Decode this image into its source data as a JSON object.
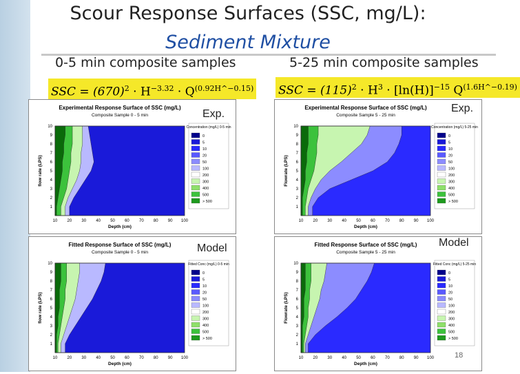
{
  "slide": {
    "title_line1": "Scour Response Surfaces (SSC, mg/L):",
    "title_line2": "Sediment Mixture",
    "left_subtitle": "0-5 min composite samples",
    "right_subtitle": "5-25 min composite samples",
    "page_number": "18"
  },
  "equations": {
    "left": {
      "lhs": "SSC = (670)",
      "p1": "2",
      "h": " · H",
      "p2": "−3.32",
      "q": " · Q",
      "p3": "(0.92H^−0.15)"
    },
    "right": {
      "lhs": "SSC = (115)",
      "p1": "2",
      "h": " · H",
      "p2": "3",
      "ln": " · [ln(H)]",
      "p3": "−15",
      "q": " Q",
      "p4": "(1.6H^−0.19)"
    }
  },
  "colors": {
    "scale": [
      "#00008b",
      "#1a1ad9",
      "#2a2aff",
      "#5a5aff",
      "#8c8cff",
      "#b9b9ff",
      "#ffffff",
      "#c7f5b0",
      "#8ee06a",
      "#3cc23c",
      "#1e9a1e",
      "#0a6a0a"
    ]
  },
  "chart_data": [
    {
      "type": "heatmap",
      "tag": "Exp.",
      "title": "Experimental Response Surface of SSC (mg/L)",
      "subtitle": "Composite Sample 0 - 5 min",
      "xlabel": "Depth (cm)",
      "ylabel": "flow rate (LPS)",
      "xticks": [
        "10",
        "20",
        "30",
        "40",
        "50",
        "60",
        "70",
        "80",
        "90",
        "100"
      ],
      "yticks": [
        "1",
        "2",
        "3",
        "4",
        "5",
        "6",
        "7",
        "8",
        "9",
        "10"
      ],
      "xlim": [
        10,
        100
      ],
      "ylim": [
        0,
        10
      ],
      "legend_title": "Concentration (mg/L) 0-5 min",
      "legend": [
        "0",
        "5",
        "10",
        "20",
        "50",
        "100",
        "200",
        "300",
        "400",
        "500",
        "> 500"
      ],
      "bands_x": [
        [
          11,
          12,
          13,
          14,
          15,
          15,
          16,
          16,
          17,
          17
        ],
        [
          14,
          16,
          18,
          19,
          20,
          21,
          21,
          22,
          22,
          22
        ],
        [
          17,
          19,
          22,
          25,
          27,
          28,
          28,
          29,
          29,
          29
        ],
        [
          20,
          23,
          27,
          31,
          35,
          37,
          36,
          35,
          34,
          33
        ]
      ],
      "band_colors": [
        "#0a6a0a",
        "#3cc23c",
        "#c7f5b0",
        "#b9b9ff",
        "#1a1ad9"
      ]
    },
    {
      "type": "heatmap",
      "tag": "Exp.",
      "title": "Experimental Response Surface of SSC (mg/L)",
      "subtitle": "Composite Sample 5 - 25 min",
      "xlabel": "Depth (cm)",
      "ylabel": "Flowrate (LPS)",
      "xticks": [
        "10",
        "20",
        "30",
        "40",
        "50",
        "60",
        "70",
        "80",
        "90",
        "100"
      ],
      "yticks": [
        "1",
        "2",
        "3",
        "4",
        "5",
        "6",
        "7",
        "8",
        "9",
        "10"
      ],
      "xlim": [
        10,
        100
      ],
      "ylim": [
        0,
        10
      ],
      "legend_title": "Concentration (mg/L) 5-25 min",
      "legend": [
        "0",
        "5",
        "10",
        "20",
        "50",
        "100",
        "200",
        "300",
        "400",
        "500",
        "> 500"
      ],
      "bands_x": [
        [
          11,
          11,
          12,
          13,
          13,
          14,
          14,
          15,
          15,
          15
        ],
        [
          13,
          14,
          15,
          17,
          19,
          20,
          21,
          21,
          22,
          22
        ],
        [
          15,
          17,
          20,
          24,
          30,
          38,
          45,
          52,
          56,
          58
        ],
        [
          18,
          22,
          30,
          45,
          60,
          70,
          75,
          78,
          80,
          80
        ]
      ],
      "band_colors": [
        "#0a6a0a",
        "#3cc23c",
        "#c7f5b0",
        "#8c8cff",
        "#2a2aff"
      ]
    },
    {
      "type": "heatmap",
      "tag": "Model",
      "title": "Fitted Response Surface of SSC (mg/L)",
      "subtitle": "Composite Sample 0 - 5 min",
      "xlabel": "Depth (cm)",
      "ylabel": "flow rate (LPS)",
      "xticks": [
        "10",
        "20",
        "30",
        "40",
        "50",
        "60",
        "70",
        "80",
        "90",
        "100"
      ],
      "yticks": [
        "1",
        "2",
        "3",
        "4",
        "5",
        "6",
        "7",
        "8",
        "9",
        "10"
      ],
      "xlim": [
        10,
        100
      ],
      "ylim": [
        0,
        10
      ],
      "legend_title": "Fitted Conc (mg/L) 0-5 min",
      "legend": [
        "0",
        "5",
        "10",
        "20",
        "50",
        "100",
        "200",
        "300",
        "400",
        "500",
        "> 500"
      ],
      "bands_x": [
        [
          11,
          11,
          12,
          12,
          13,
          13,
          13,
          14,
          14,
          14
        ],
        [
          12,
          13,
          14,
          15,
          16,
          17,
          17,
          18,
          18,
          18
        ],
        [
          14,
          16,
          18,
          20,
          22,
          24,
          25,
          26,
          27,
          27
        ],
        [
          17,
          20,
          24,
          28,
          32,
          36,
          39,
          42,
          44,
          45
        ]
      ],
      "band_colors": [
        "#0a6a0a",
        "#3cc23c",
        "#c7f5b0",
        "#b9b9ff",
        "#1a1ad9"
      ]
    },
    {
      "type": "heatmap",
      "tag": "Model",
      "title": "Fitted Response Surface of SSC (mg/L)",
      "subtitle": "Composite Sample 5 - 25 min",
      "xlabel": "Depth (cm)",
      "ylabel": "Flowrate (LPS)",
      "xticks": [
        "10",
        "20",
        "30",
        "40",
        "50",
        "60",
        "70",
        "80",
        "90",
        "100"
      ],
      "yticks": [
        "1",
        "2",
        "3",
        "4",
        "5",
        "6",
        "7",
        "8",
        "9",
        "10"
      ],
      "xlim": [
        10,
        100
      ],
      "ylim": [
        0,
        10
      ],
      "legend_title": "Fitted Conc (mg/L) 5-25 min",
      "legend": [
        "0",
        "5",
        "10",
        "20",
        "50",
        "100",
        "200",
        "300",
        "400",
        "500",
        "> 500"
      ],
      "bands_x": [
        [
          11,
          11,
          11,
          12,
          12,
          12,
          13,
          13,
          13,
          13
        ],
        [
          12,
          13,
          14,
          15,
          15,
          16,
          16,
          17,
          17,
          17
        ],
        [
          13,
          15,
          17,
          19,
          21,
          23,
          24,
          26,
          27,
          28
        ],
        [
          15,
          20,
          27,
          35,
          42,
          48,
          52,
          56,
          59,
          61
        ]
      ],
      "band_colors": [
        "#0a6a0a",
        "#3cc23c",
        "#c7f5b0",
        "#8c8cff",
        "#2a2aff"
      ]
    }
  ]
}
